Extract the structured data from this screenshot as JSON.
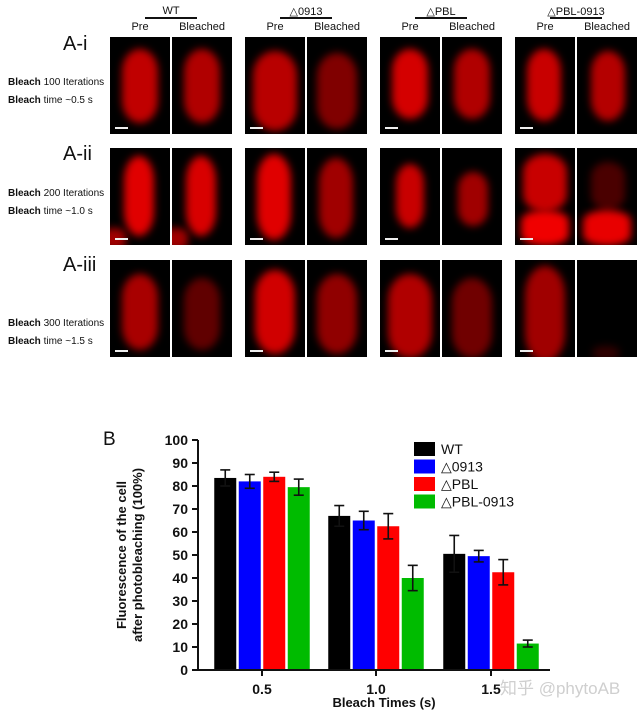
{
  "figure": {
    "panel_a": {
      "strains": [
        {
          "label": "WT",
          "pre": "Pre",
          "bleached": "Bleached"
        },
        {
          "label": "△0913",
          "pre": "Pre",
          "bleached": "Bleached"
        },
        {
          "label": "△PBL",
          "pre": "Pre",
          "bleached": "Bleached"
        },
        {
          "label": "△PBL-0913",
          "pre": "Pre",
          "bleached": "Bleached"
        }
      ],
      "rows": [
        {
          "label": "A-i",
          "line1_bold": "Bleach",
          "line1_rest": " 100 Iterations",
          "line2_bold": "Bleach",
          "line2_rest": " time ~0.5 s"
        },
        {
          "label": "A-ii",
          "line1_bold": "Bleach",
          "line1_rest": " 200 Iterations",
          "line2_bold": "Bleach",
          "line2_rest": " time ~1.0 s"
        },
        {
          "label": "A-iii",
          "line1_bold": "Bleach",
          "line1_rest": " 300 Iterations",
          "line2_bold": "Bleach",
          "line2_rest": " time ~1.5 s"
        }
      ]
    },
    "panel_b_label": "B",
    "watermark": "知乎 @phytoAB"
  },
  "chart_data": {
    "type": "bar",
    "title": "",
    "xlabel": "Bleach Times (s)",
    "ylabel": "Fluorescence of the cell after photobleaching (100%)",
    "ylabel_line1": "Fluorescence of the cell",
    "ylabel_line2": "after photobleaching (100%)",
    "categories": [
      "0.5",
      "1.0",
      "1.5"
    ],
    "yticks": [
      "0",
      "10",
      "20",
      "30",
      "40",
      "50",
      "60",
      "70",
      "80",
      "90",
      "100"
    ],
    "ylim": [
      0,
      100
    ],
    "grid": false,
    "legend_position": "top-right",
    "series": [
      {
        "name": "WT",
        "color": "#000000",
        "values": [
          83.5,
          67,
          50.5
        ],
        "errors": [
          3.5,
          4.5,
          8
        ]
      },
      {
        "name": "△0913",
        "color": "#0000ff",
        "values": [
          82,
          65,
          49.5
        ],
        "errors": [
          3,
          4,
          2.5
        ]
      },
      {
        "name": "△PBL",
        "color": "#ff0000",
        "values": [
          84,
          62.5,
          42.5
        ],
        "errors": [
          2,
          5.5,
          5.5
        ]
      },
      {
        "name": "△PBL-0913",
        "color": "#00bb00",
        "values": [
          79.5,
          40,
          11.5
        ],
        "errors": [
          3.5,
          5.5,
          1.5
        ]
      }
    ]
  }
}
